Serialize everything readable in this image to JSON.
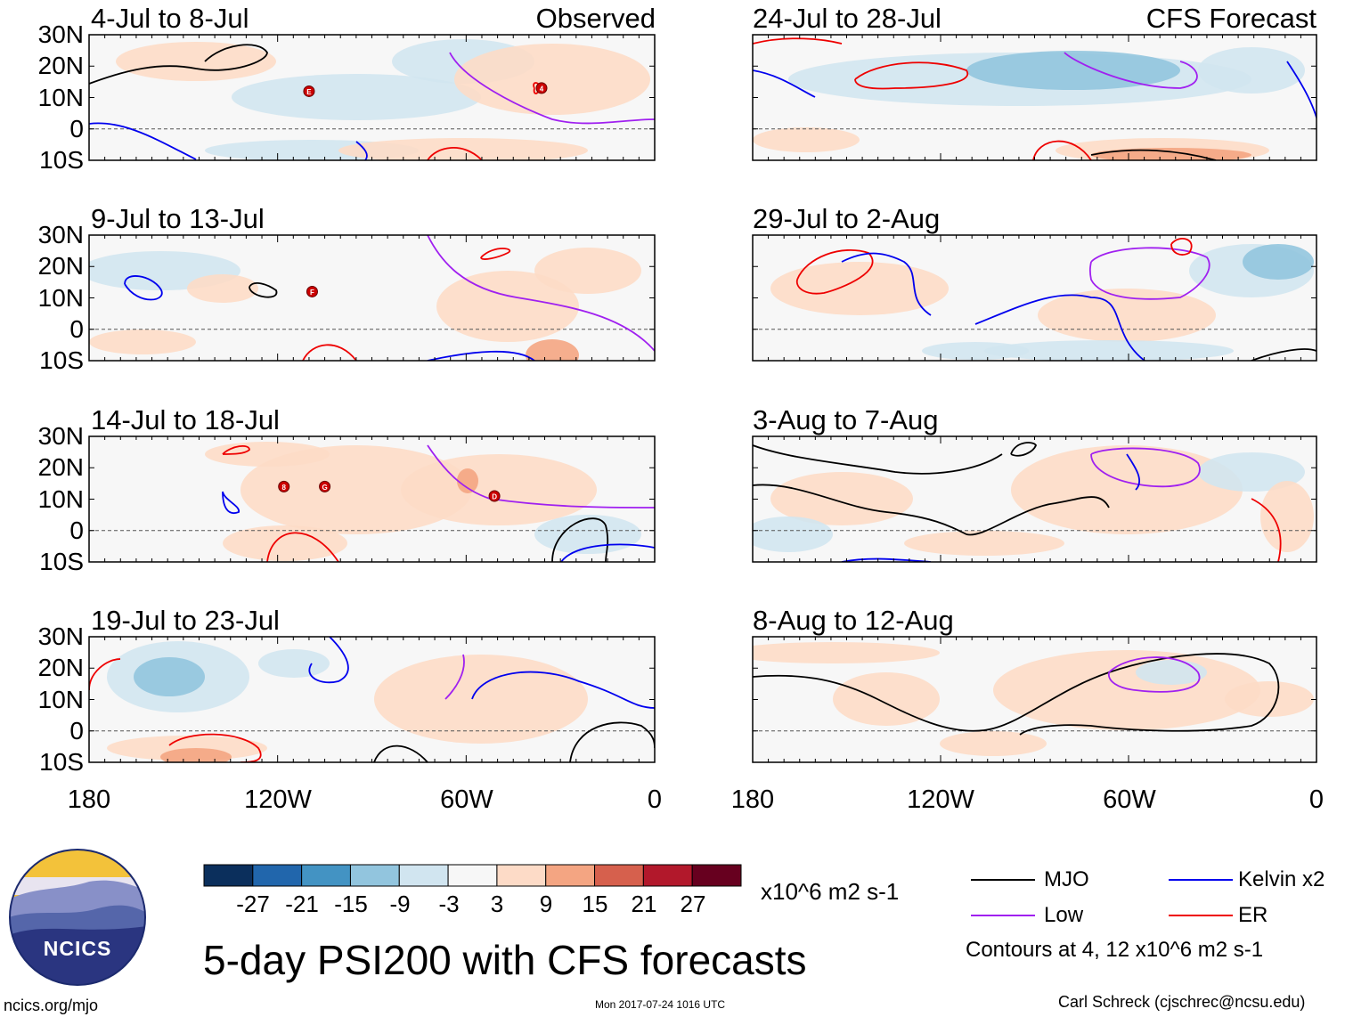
{
  "main_title": "5-day PSI200 with CFS forecasts",
  "units": "x10^6 m2 s-1",
  "contour_note": "Contours at 4, 12 x10^6 m2 s-1",
  "footer": {
    "url": "ncics.org/mjo",
    "timestamp": "Mon 2017-07-24 1016 UTC",
    "author": "Carl Schreck (cjschrec@ncsu.edu)"
  },
  "logo": {
    "text": "NCICS"
  },
  "panels": [
    {
      "title": "4-Jul to 8-Jul",
      "tag": "Observed"
    },
    {
      "title": "9-Jul to 13-Jul",
      "tag": ""
    },
    {
      "title": "14-Jul to 18-Jul",
      "tag": ""
    },
    {
      "title": "19-Jul to 23-Jul",
      "tag": ""
    },
    {
      "title": "24-Jul to 28-Jul",
      "tag": "CFS Forecast"
    },
    {
      "title": "29-Jul to 2-Aug",
      "tag": ""
    },
    {
      "title": "3-Aug to 7-Aug",
      "tag": ""
    },
    {
      "title": "8-Aug to 12-Aug",
      "tag": ""
    }
  ],
  "lat_labels": [
    "30N",
    "20N",
    "10N",
    "0",
    "10S"
  ],
  "lon_labels": [
    "180",
    "120W",
    "60W",
    "0"
  ],
  "colorbar": {
    "ticks": [
      "-27",
      "-21",
      "-15",
      "-9",
      "-3",
      "3",
      "9",
      "15",
      "21",
      "27"
    ],
    "colors": [
      "#0b2f5c",
      "#2166ac",
      "#4393c3",
      "#92c5de",
      "#d1e5f0",
      "#f7f7f7",
      "#fddbc7",
      "#f4a582",
      "#d6604d",
      "#b2182b",
      "#67001f"
    ]
  },
  "legend": [
    {
      "label": "MJO",
      "color": "#000000"
    },
    {
      "label": "Kelvin x2",
      "color": "#0000ee"
    },
    {
      "label": "Low",
      "color": "#a020f0"
    },
    {
      "label": "ER",
      "color": "#ee0000"
    }
  ],
  "storm_markers": [
    {
      "panel": 0,
      "letter": "E",
      "lon": -110,
      "lat": 12
    },
    {
      "panel": 0,
      "letter": "4",
      "lon": -36,
      "lat": 13
    },
    {
      "panel": 1,
      "letter": "F",
      "lon": -109,
      "lat": 12
    },
    {
      "panel": 2,
      "letter": "8",
      "lon": -118,
      "lat": 14
    },
    {
      "panel": 2,
      "letter": "G",
      "lon": -105,
      "lat": 14
    },
    {
      "panel": 2,
      "letter": "D",
      "lon": -51,
      "lat": 11
    }
  ]
}
